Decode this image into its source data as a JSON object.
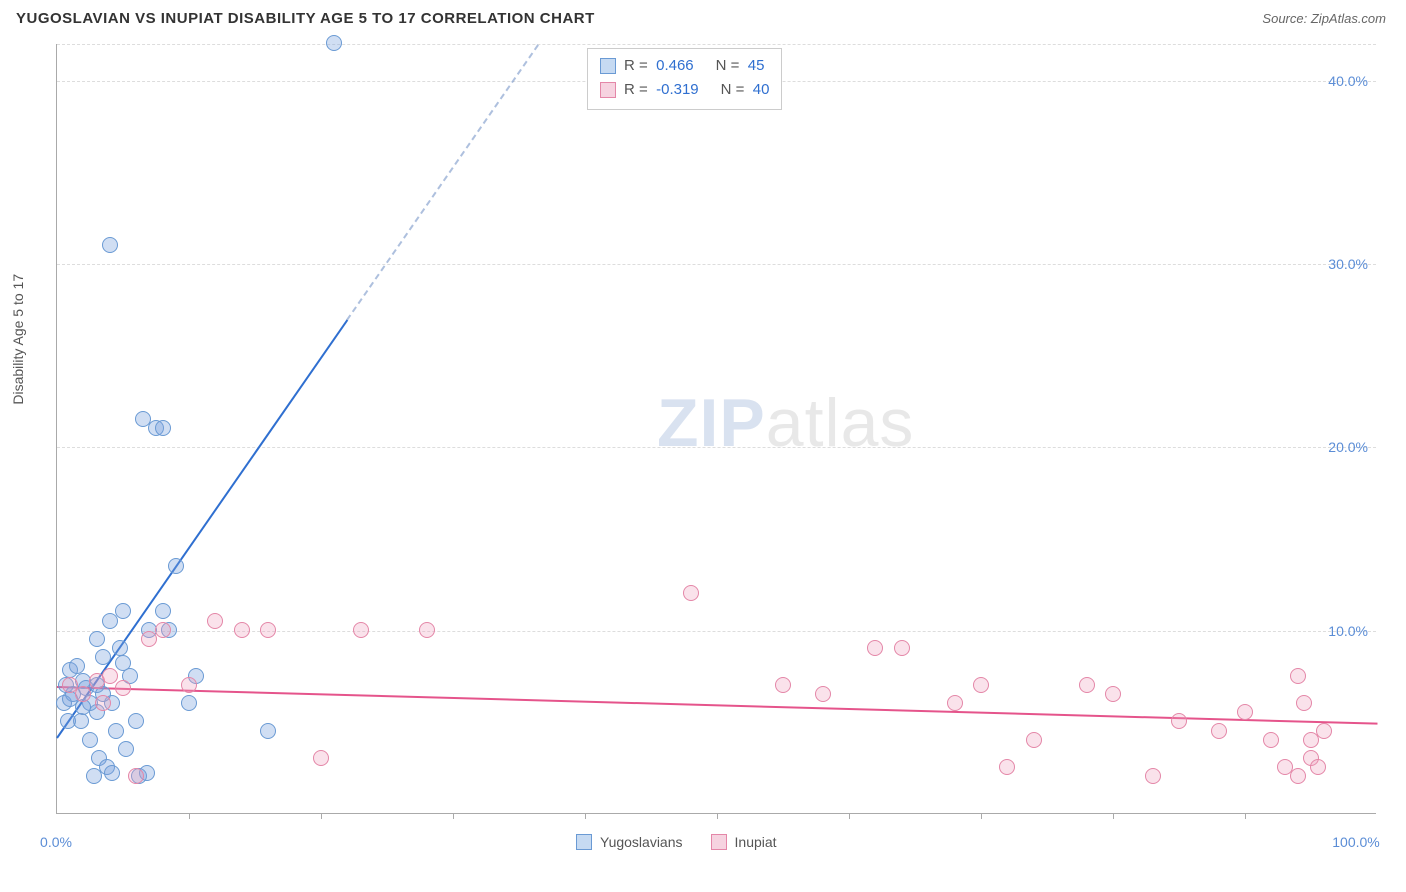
{
  "title": "YUGOSLAVIAN VS INUPIAT DISABILITY AGE 5 TO 17 CORRELATION CHART",
  "source_label": "Source:",
  "source_value": "ZipAtlas.com",
  "ylabel": "Disability Age 5 to 17",
  "watermark_z": "ZIP",
  "watermark_rest": "atlas",
  "chart": {
    "type": "scatter",
    "xlim": [
      0,
      100
    ],
    "ylim": [
      0,
      42
    ],
    "xtick_step": 10,
    "ytick_step": 10,
    "yticks": [
      10,
      20,
      30,
      40
    ],
    "ytick_labels": [
      "10.0%",
      "20.0%",
      "30.0%",
      "40.0%"
    ],
    "xaxis_labels": {
      "left": "0.0%",
      "right": "100.0%"
    },
    "grid_color": "#dddddd",
    "axis_color": "#aaaaaa",
    "label_color": "#5b8dd6",
    "background_color": "#ffffff",
    "point_radius": 8,
    "point_stroke_width": 1.5,
    "series": [
      {
        "name": "Yugoslavians",
        "fill": "rgba(120,160,220,0.35)",
        "stroke": "#6a9ad4",
        "swatch_fill": "#c6daf2",
        "swatch_border": "#6a9ad4",
        "R": "0.466",
        "N": "45",
        "trend": {
          "x1": 0,
          "y1": 4.2,
          "x2": 22,
          "y2": 27.0,
          "color": "#2f6fd0",
          "dash_to_y": 42
        },
        "points": [
          [
            0.5,
            6.0
          ],
          [
            0.7,
            7.0
          ],
          [
            1.0,
            7.8
          ],
          [
            1.2,
            6.5
          ],
          [
            1.5,
            8.0
          ],
          [
            1.8,
            5.0
          ],
          [
            2.0,
            7.2
          ],
          [
            2.2,
            6.8
          ],
          [
            2.5,
            4.0
          ],
          [
            2.8,
            2.0
          ],
          [
            3.0,
            5.5
          ],
          [
            3.2,
            3.0
          ],
          [
            3.5,
            8.5
          ],
          [
            3.8,
            2.5
          ],
          [
            4.0,
            10.5
          ],
          [
            4.2,
            6.0
          ],
          [
            4.5,
            4.5
          ],
          [
            4.8,
            9.0
          ],
          [
            5.0,
            11.0
          ],
          [
            5.2,
            3.5
          ],
          [
            5.5,
            7.5
          ],
          [
            6.0,
            5.0
          ],
          [
            6.2,
            2.0
          ],
          [
            6.5,
            21.5
          ],
          [
            7.0,
            10.0
          ],
          [
            7.5,
            21.0
          ],
          [
            8.0,
            11.0
          ],
          [
            8.5,
            10.0
          ],
          [
            9.0,
            13.5
          ],
          [
            10.0,
            6.0
          ],
          [
            10.5,
            7.5
          ],
          [
            5.0,
            8.2
          ],
          [
            4.0,
            31.0
          ],
          [
            3.0,
            7.0
          ],
          [
            2.5,
            6.0
          ],
          [
            2.0,
            5.8
          ],
          [
            1.0,
            6.2
          ],
          [
            0.8,
            5.0
          ],
          [
            16.0,
            4.5
          ],
          [
            21.0,
            42.0
          ],
          [
            8.0,
            21.0
          ],
          [
            3.5,
            6.5
          ],
          [
            4.2,
            2.2
          ],
          [
            6.8,
            2.2
          ],
          [
            3.0,
            9.5
          ]
        ]
      },
      {
        "name": "Inupiat",
        "fill": "rgba(240,160,190,0.30)",
        "stroke": "#e487a8",
        "swatch_fill": "#f6d3e0",
        "swatch_border": "#e487a8",
        "R": "-0.319",
        "N": "40",
        "trend": {
          "x1": 0,
          "y1": 7.0,
          "x2": 100,
          "y2": 5.0,
          "color": "#e5548b"
        },
        "points": [
          [
            1.0,
            7.0
          ],
          [
            2.0,
            6.5
          ],
          [
            3.0,
            7.2
          ],
          [
            3.5,
            6.0
          ],
          [
            4.0,
            7.5
          ],
          [
            5.0,
            6.8
          ],
          [
            6.0,
            2.0
          ],
          [
            7.0,
            9.5
          ],
          [
            8.0,
            10.0
          ],
          [
            10.0,
            7.0
          ],
          [
            12.0,
            10.5
          ],
          [
            14.0,
            10.0
          ],
          [
            16.0,
            10.0
          ],
          [
            20.0,
            3.0
          ],
          [
            23.0,
            10.0
          ],
          [
            28.0,
            10.0
          ],
          [
            48.0,
            12.0
          ],
          [
            55.0,
            7.0
          ],
          [
            58.0,
            6.5
          ],
          [
            62.0,
            9.0
          ],
          [
            64.0,
            9.0
          ],
          [
            68.0,
            6.0
          ],
          [
            70.0,
            7.0
          ],
          [
            72.0,
            2.5
          ],
          [
            74.0,
            4.0
          ],
          [
            78.0,
            7.0
          ],
          [
            80.0,
            6.5
          ],
          [
            83.0,
            2.0
          ],
          [
            85.0,
            5.0
          ],
          [
            88.0,
            4.5
          ],
          [
            90.0,
            5.5
          ],
          [
            92.0,
            4.0
          ],
          [
            93.0,
            2.5
          ],
          [
            94.0,
            7.5
          ],
          [
            94.5,
            6.0
          ],
          [
            94.0,
            2.0
          ],
          [
            95.0,
            4.0
          ],
          [
            95.0,
            3.0
          ],
          [
            96.0,
            4.5
          ],
          [
            95.5,
            2.5
          ]
        ]
      }
    ]
  },
  "legend_top_labels": {
    "R": "R  =",
    "N": "N  ="
  },
  "legend_bottom": [
    {
      "label": "Yugoslavians",
      "series": 0
    },
    {
      "label": "Inupiat",
      "series": 1
    }
  ]
}
